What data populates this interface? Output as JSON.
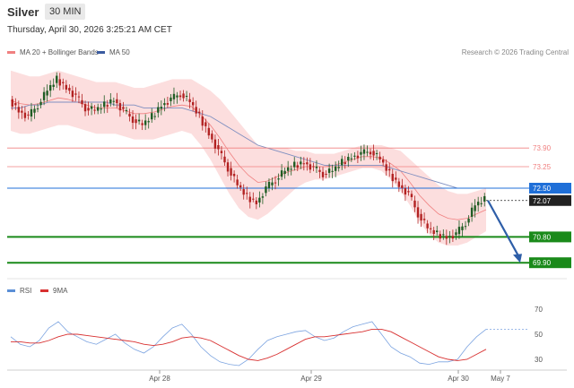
{
  "header": {
    "title": "Silver",
    "timeframe": "30 MIN",
    "date": "Thursday, April 30, 2026 3:25:21 AM CET",
    "copyright": "Research © 2026 Trading Central"
  },
  "legend": {
    "bb_label": "MA 20 + Bollinger Bands",
    "ma50_label": "MA 50",
    "bb_color": "#f08080",
    "ma50_color": "#3a5ba0",
    "rsi_label": "RSI",
    "rsi_color": "#5b8fd6",
    "ma9_label": "9MA",
    "ma9_color": "#d83030"
  },
  "chart_data": {
    "type": "candlestick",
    "ylim": [
      69.5,
      77.0
    ],
    "levels": [
      {
        "value": 73.9,
        "label": "73.90",
        "color": "#f08080",
        "style": "thin"
      },
      {
        "value": 73.25,
        "label": "73.25",
        "color": "#f08080",
        "style": "thin"
      },
      {
        "value": 72.5,
        "label": "72.50",
        "color": "#1f6fd8",
        "style": "pivot"
      },
      {
        "value": 72.07,
        "label": "72.07",
        "color": "#222222",
        "style": "last"
      },
      {
        "value": 70.8,
        "label": "70.80",
        "color": "#1a8a1a",
        "style": "support"
      },
      {
        "value": 69.9,
        "label": "69.90",
        "color": "#1a8a1a",
        "style": "support"
      }
    ],
    "x_ticks": [
      "Apr 28",
      "Apr 29",
      "Apr 30",
      "May 7"
    ],
    "forecast": {
      "from": 72.07,
      "to": 69.9
    },
    "price_path": [
      75.6,
      75.2,
      75.0,
      75.4,
      75.9,
      76.3,
      76.0,
      75.7,
      75.3,
      75.2,
      75.4,
      75.6,
      75.2,
      74.9,
      74.7,
      75.0,
      75.4,
      75.6,
      75.8,
      75.5,
      75.0,
      74.4,
      73.8,
      73.2,
      72.6,
      72.2,
      72.0,
      72.5,
      72.8,
      73.1,
      73.3,
      73.4,
      73.2,
      73.0,
      73.1,
      73.4,
      73.6,
      73.7,
      73.8,
      73.5,
      73.0,
      72.6,
      72.3,
      71.6,
      71.1,
      70.9,
      70.8,
      70.9,
      71.3,
      71.9,
      72.1
    ],
    "bb_upper": [
      76.6,
      76.5,
      76.4,
      76.4,
      76.5,
      76.6,
      76.5,
      76.4,
      76.3,
      76.2,
      76.2,
      76.2,
      76.1,
      76.0,
      76.0,
      76.1,
      76.2,
      76.3,
      76.3,
      76.3,
      76.1,
      75.9,
      75.6,
      75.2,
      74.8,
      74.4,
      74.0,
      73.9,
      73.9,
      73.9,
      73.8,
      73.8,
      73.7,
      73.7,
      73.7,
      73.8,
      73.9,
      74.0,
      74.0,
      74.0,
      73.9,
      73.8,
      73.5,
      73.2,
      72.9,
      72.6,
      72.4,
      72.3,
      72.3,
      72.4,
      72.5
    ],
    "bb_lower": [
      74.5,
      74.4,
      74.4,
      74.5,
      74.6,
      74.7,
      74.7,
      74.6,
      74.5,
      74.4,
      74.4,
      74.4,
      74.3,
      74.2,
      74.2,
      74.2,
      74.3,
      74.4,
      74.5,
      74.4,
      74.0,
      73.5,
      72.9,
      72.3,
      71.8,
      71.5,
      71.4,
      71.6,
      71.9,
      72.2,
      72.5,
      72.7,
      72.8,
      72.8,
      72.9,
      73.0,
      73.1,
      73.2,
      73.2,
      73.1,
      72.8,
      72.4,
      71.9,
      71.3,
      70.9,
      70.6,
      70.5,
      70.5,
      70.6,
      70.8,
      71.0
    ],
    "ma50": [
      75.3,
      75.3,
      75.4,
      75.4,
      75.5,
      75.5,
      75.5,
      75.5,
      75.5,
      75.5,
      75.5,
      75.4,
      75.4,
      75.4,
      75.3,
      75.3,
      75.3,
      75.3,
      75.3,
      75.2,
      75.1,
      75.0,
      74.8,
      74.6,
      74.4,
      74.2,
      74.0,
      73.9,
      73.8,
      73.7,
      73.6,
      73.5,
      73.4,
      73.3,
      73.3,
      73.3,
      73.3,
      73.3,
      73.3,
      73.3,
      73.2,
      73.1,
      73.0,
      72.9,
      72.8,
      72.7,
      72.6,
      72.5,
      72.5,
      72.5,
      72.5
    ],
    "rsi": {
      "ylim": [
        25,
        75
      ],
      "ticks": [
        70,
        50,
        30
      ],
      "rsi_values": [
        48,
        42,
        40,
        45,
        55,
        60,
        52,
        48,
        44,
        42,
        46,
        50,
        43,
        38,
        35,
        40,
        48,
        55,
        58,
        50,
        40,
        33,
        28,
        26,
        25,
        30,
        38,
        45,
        48,
        50,
        52,
        53,
        48,
        45,
        47,
        52,
        56,
        58,
        60,
        50,
        40,
        35,
        32,
        27,
        26,
        28,
        28,
        30,
        40,
        48,
        54
      ],
      "ma9_values": [
        44,
        44,
        43,
        43,
        45,
        48,
        50,
        50,
        49,
        48,
        47,
        46,
        45,
        44,
        42,
        41,
        42,
        44,
        47,
        48,
        47,
        45,
        41,
        37,
        33,
        30,
        29,
        31,
        34,
        38,
        42,
        46,
        48,
        48,
        49,
        50,
        51,
        52,
        54,
        54,
        52,
        48,
        44,
        40,
        36,
        32,
        30,
        29,
        30,
        34,
        38
      ]
    }
  }
}
